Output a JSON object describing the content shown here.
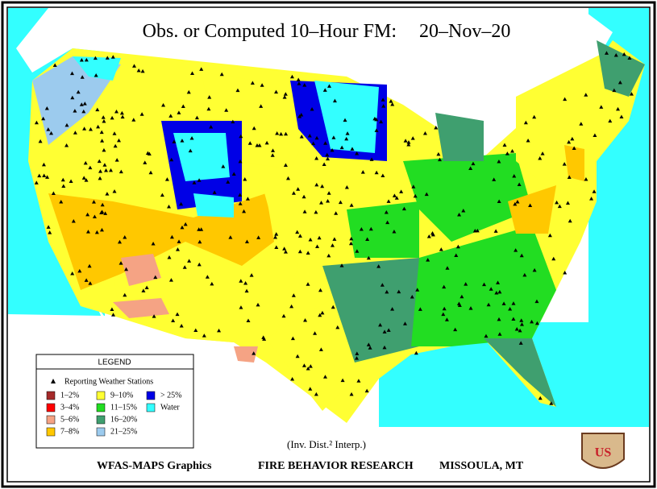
{
  "header": {
    "title": "Obs. or Computed 10–Hour FM:",
    "date": "20–Nov–20"
  },
  "legend": {
    "title": "LEGEND",
    "stations": "Reporting Weather Stations",
    "items": [
      {
        "label": "1–2%",
        "color": "#a52a2a"
      },
      {
        "label": "3–4%",
        "color": "#ff0000"
      },
      {
        "label": "5–6%",
        "color": "#f5a384"
      },
      {
        "label": "7–8%",
        "color": "#ffc800"
      },
      {
        "label": "9–10%",
        "color": "#ffff33"
      },
      {
        "label": "11–15%",
        "color": "#22dd22"
      },
      {
        "label": "16–20%",
        "color": "#3f9f6f"
      },
      {
        "label": "21–25%",
        "color": "#9ccbee"
      },
      {
        "label": "> 25%",
        "color": "#0000e6"
      },
      {
        "label": "Water",
        "color": "#33ffff"
      }
    ]
  },
  "footer": {
    "method": "(Inv. Dist.² Interp.)",
    "credit": "WFAS-MAPS Graphics",
    "org": "FIRE BEHAVIOR RESEARCH",
    "place": "MISSOULA, MT"
  },
  "logo": {
    "text": "US"
  }
}
